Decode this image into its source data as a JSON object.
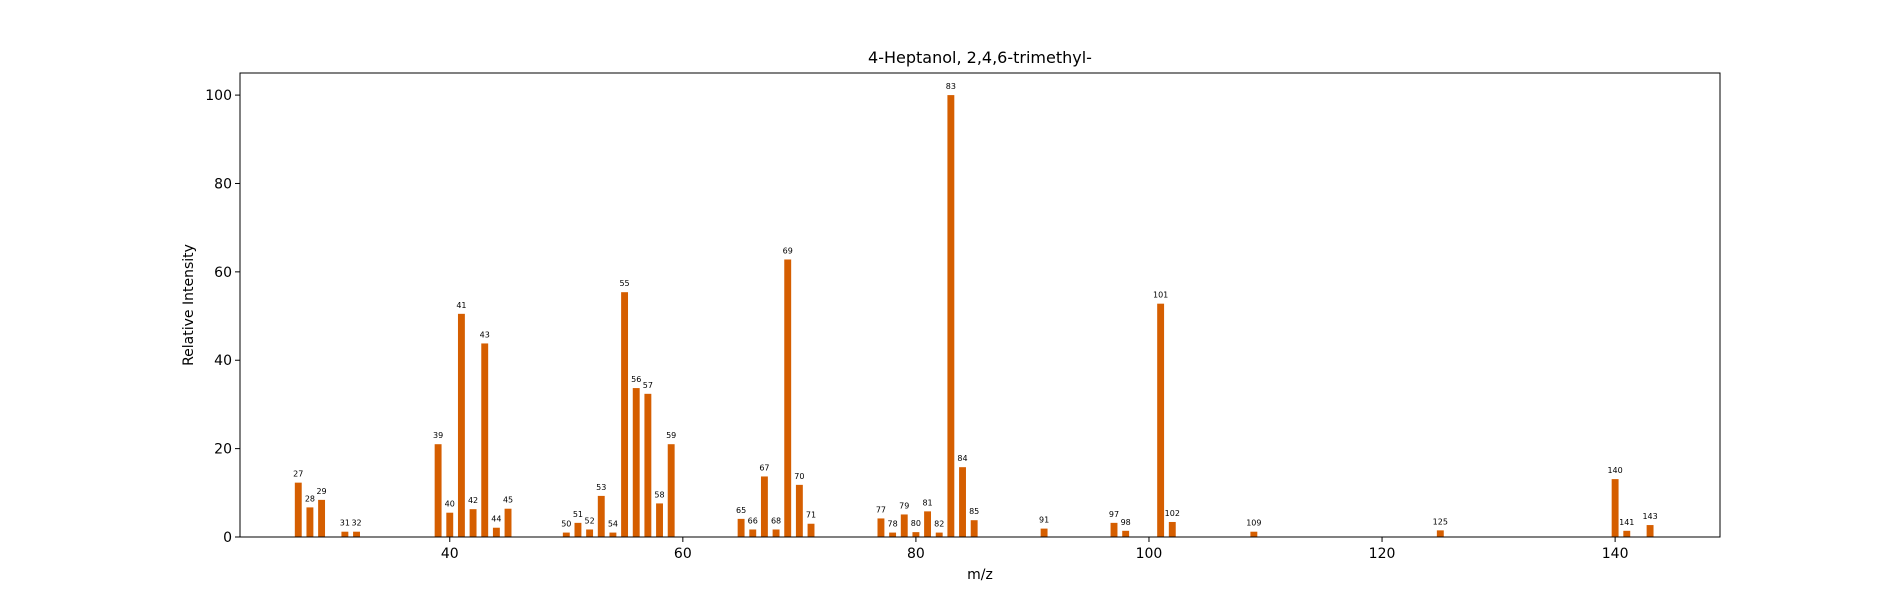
{
  "chart_data": {
    "type": "bar",
    "title": "4-Heptanol, 2,4,6-trimethyl-",
    "xlabel": "m/z",
    "ylabel": "Relative Intensity",
    "xlim": [
      22,
      149
    ],
    "ylim": [
      0,
      105
    ],
    "xticks": [
      40,
      60,
      80,
      100,
      120,
      140
    ],
    "yticks": [
      0,
      20,
      40,
      60,
      80,
      100
    ],
    "bar_color": "#d55e00",
    "grid": false,
    "legend": false,
    "x": [
      27,
      28,
      29,
      31,
      32,
      39,
      40,
      41,
      42,
      43,
      44,
      45,
      50,
      51,
      52,
      53,
      54,
      55,
      56,
      57,
      58,
      59,
      65,
      66,
      67,
      68,
      69,
      70,
      71,
      77,
      78,
      79,
      80,
      81,
      82,
      83,
      84,
      85,
      91,
      97,
      98,
      101,
      102,
      109,
      125,
      140,
      141,
      143
    ],
    "values": [
      12.3,
      6.7,
      8.4,
      1.2,
      1.2,
      21.0,
      5.5,
      50.5,
      6.3,
      43.8,
      2.1,
      6.4,
      1.0,
      3.2,
      1.7,
      9.3,
      1.0,
      55.4,
      33.7,
      32.4,
      7.6,
      21.0,
      4.1,
      1.7,
      13.7,
      1.7,
      62.8,
      11.8,
      3.0,
      4.2,
      1.0,
      5.1,
      1.1,
      5.8,
      1.0,
      100.0,
      15.8,
      3.8,
      1.9,
      3.2,
      1.4,
      52.8,
      3.4,
      1.2,
      1.5,
      13.1,
      1.4,
      2.7
    ],
    "labels": [
      "27",
      "28",
      "29",
      "31",
      "32",
      "39",
      "40",
      "41",
      "42",
      "43",
      "44",
      "45",
      "50",
      "51",
      "52",
      "53",
      "54",
      "55",
      "56",
      "57",
      "58",
      "59",
      "65",
      "66",
      "67",
      "68",
      "69",
      "70",
      "71",
      "77",
      "78",
      "79",
      "80",
      "81",
      "82",
      "83",
      "84",
      "85",
      "91",
      "97",
      "98",
      "101",
      "102",
      "109",
      "125",
      "140",
      "141",
      "143"
    ]
  }
}
